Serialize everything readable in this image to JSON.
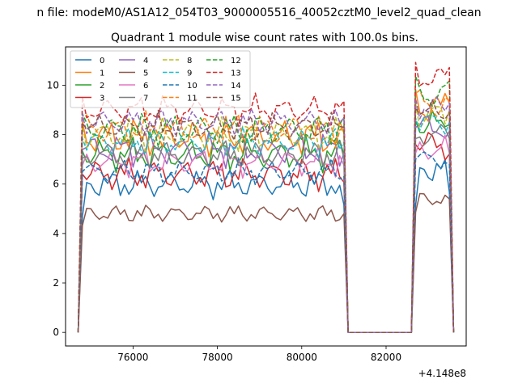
{
  "figure": {
    "suptitle": "n file: modeM0/AS1A12_054T03_9000005516_40052cztM0_level2_quad_clean",
    "offset_label": "+4.148e8"
  },
  "chart_data": {
    "type": "line",
    "title": "Quadrant 1 module wise count rates with 100.0s bins.",
    "xlabel": "",
    "ylabel": "",
    "xlim": [
      74400,
      83900
    ],
    "ylim": [
      -0.55,
      11.55
    ],
    "x_offset": 414800000,
    "xticks": [
      76000,
      78000,
      80000,
      82000
    ],
    "yticks": [
      0,
      2,
      4,
      6,
      8,
      10
    ],
    "grid": false,
    "legend": {
      "placement": "top-left",
      "ncol": 4
    },
    "segments": [
      {
        "start": 74800,
        "end": 81000,
        "edge_points": 2
      },
      {
        "start": 82700,
        "end": 83500,
        "edge_points": 1
      }
    ],
    "series": [
      {
        "name": "0",
        "color": "#1f77b4",
        "dashed": false,
        "seg_levels": [
          6.0,
          6.6
        ],
        "edge_start": 0.78,
        "edge_end": 0.86,
        "wiggle": 0.35
      },
      {
        "name": "1",
        "color": "#ff7f0e",
        "dashed": false,
        "seg_levels": [
          7.9,
          9.1
        ],
        "edge_start": 1.08,
        "edge_end": 1.02,
        "wiggle": 0.45
      },
      {
        "name": "2",
        "color": "#2ca02c",
        "dashed": false,
        "seg_levels": [
          7.2,
          8.4
        ],
        "edge_start": 1.02,
        "edge_end": 1.0,
        "wiggle": 0.4
      },
      {
        "name": "3",
        "color": "#d62728",
        "dashed": false,
        "seg_levels": [
          6.4,
          7.6
        ],
        "edge_start": 1.0,
        "edge_end": 0.95,
        "wiggle": 0.4
      },
      {
        "name": "4",
        "color": "#9467bd",
        "dashed": false,
        "seg_levels": [
          7.4,
          8.3
        ],
        "edge_start": 1.0,
        "edge_end": 0.98,
        "wiggle": 0.4
      },
      {
        "name": "5",
        "color": "#8c564b",
        "dashed": false,
        "seg_levels": [
          4.8,
          5.4
        ],
        "edge_start": 0.9,
        "edge_end": 1.0,
        "wiggle": 0.22
      },
      {
        "name": "6",
        "color": "#e377c2",
        "dashed": false,
        "seg_levels": [
          6.9,
          7.4
        ],
        "edge_start": 0.98,
        "edge_end": 0.98,
        "wiggle": 0.35
      },
      {
        "name": "7",
        "color": "#7f7f7f",
        "dashed": false,
        "seg_levels": [
          7.2,
          8.0
        ],
        "edge_start": 0.98,
        "edge_end": 0.98,
        "wiggle": 0.35
      },
      {
        "name": "8",
        "color": "#bcbd22",
        "dashed": true,
        "seg_levels": [
          8.0,
          8.8
        ],
        "edge_start": 1.05,
        "edge_end": 1.02,
        "wiggle": 0.4
      },
      {
        "name": "9",
        "color": "#17becf",
        "dashed": true,
        "seg_levels": [
          7.7,
          8.5
        ],
        "edge_start": 1.02,
        "edge_end": 1.0,
        "wiggle": 0.35
      },
      {
        "name": "10",
        "color": "#1f77b4",
        "dashed": true,
        "seg_levels": [
          6.5,
          7.0
        ],
        "edge_start": 1.0,
        "edge_end": 0.97,
        "wiggle": 0.3
      },
      {
        "name": "11",
        "color": "#ff7f0e",
        "dashed": true,
        "seg_levels": [
          8.2,
          9.2
        ],
        "edge_start": 1.05,
        "edge_end": 1.02,
        "wiggle": 0.4
      },
      {
        "name": "12",
        "color": "#2ca02c",
        "dashed": true,
        "seg_levels": [
          8.2,
          9.6
        ],
        "edge_start": 1.08,
        "edge_end": 1.06,
        "wiggle": 0.4
      },
      {
        "name": "13",
        "color": "#d62728",
        "dashed": true,
        "seg_levels": [
          9.0,
          10.3
        ],
        "edge_start": 1.06,
        "edge_end": 1.04,
        "wiggle": 0.35
      },
      {
        "name": "14",
        "color": "#9467bd",
        "dashed": true,
        "seg_levels": [
          8.5,
          9.1
        ],
        "edge_start": 1.04,
        "edge_end": 1.02,
        "wiggle": 0.35
      },
      {
        "name": "15",
        "color": "#8c564b",
        "dashed": true,
        "seg_levels": [
          8.3,
          8.9
        ],
        "edge_start": 1.02,
        "edge_end": 1.0,
        "wiggle": 0.35
      }
    ]
  }
}
